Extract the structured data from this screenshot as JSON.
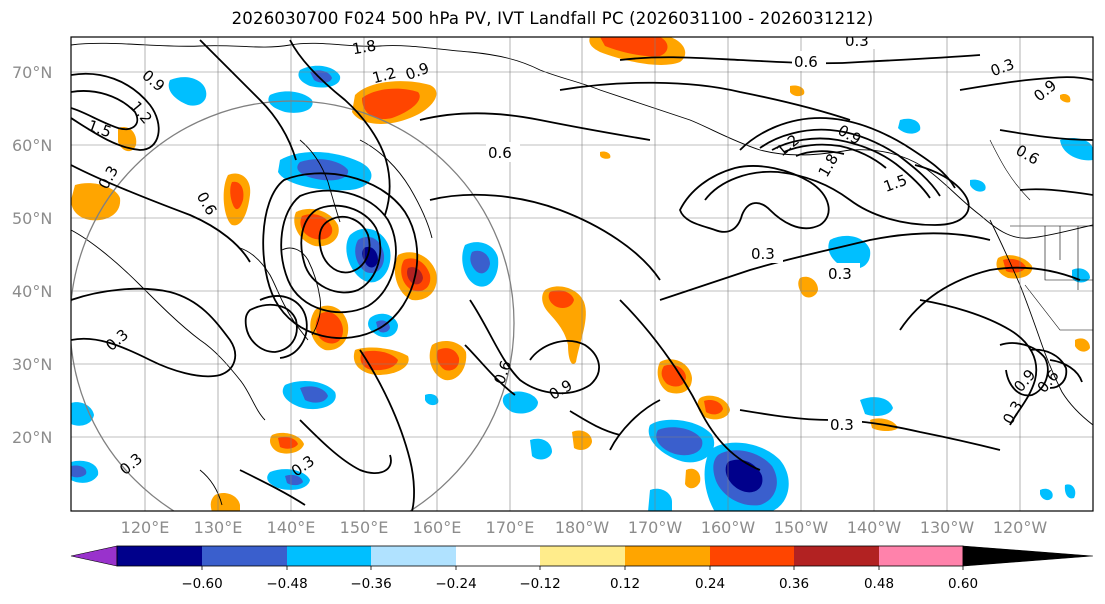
{
  "title": "2026030700 F024 500 hPa PV, IVT Landfall PC (2026031100 - 2026031212)",
  "map": {
    "lat_labels": [
      "70°N",
      "60°N",
      "50°N",
      "40°N",
      "30°N",
      "20°N"
    ],
    "lon_labels": [
      "120°E",
      "130°E",
      "140°E",
      "150°E",
      "160°E",
      "170°E",
      "180°W",
      "170°W",
      "160°W",
      "150°W",
      "140°W",
      "130°W",
      "120°W"
    ],
    "contour_labels": [
      "0.3",
      "0.6",
      "0.9",
      "1.2",
      "1.5",
      "1.8"
    ]
  },
  "colorbar": {
    "ticks": [
      "−0.60",
      "−0.48",
      "−0.36",
      "−0.24",
      "−0.12",
      "0.12",
      "0.24",
      "0.36",
      "0.48",
      "0.60"
    ],
    "colors": [
      "#9932cc",
      "#00008b",
      "#3a5fcd",
      "#00bfff",
      "#b0e2ff",
      "#ffffff",
      "#ffec8b",
      "#ffa500",
      "#ff4500",
      "#b22222",
      "#ff82ab"
    ]
  }
}
